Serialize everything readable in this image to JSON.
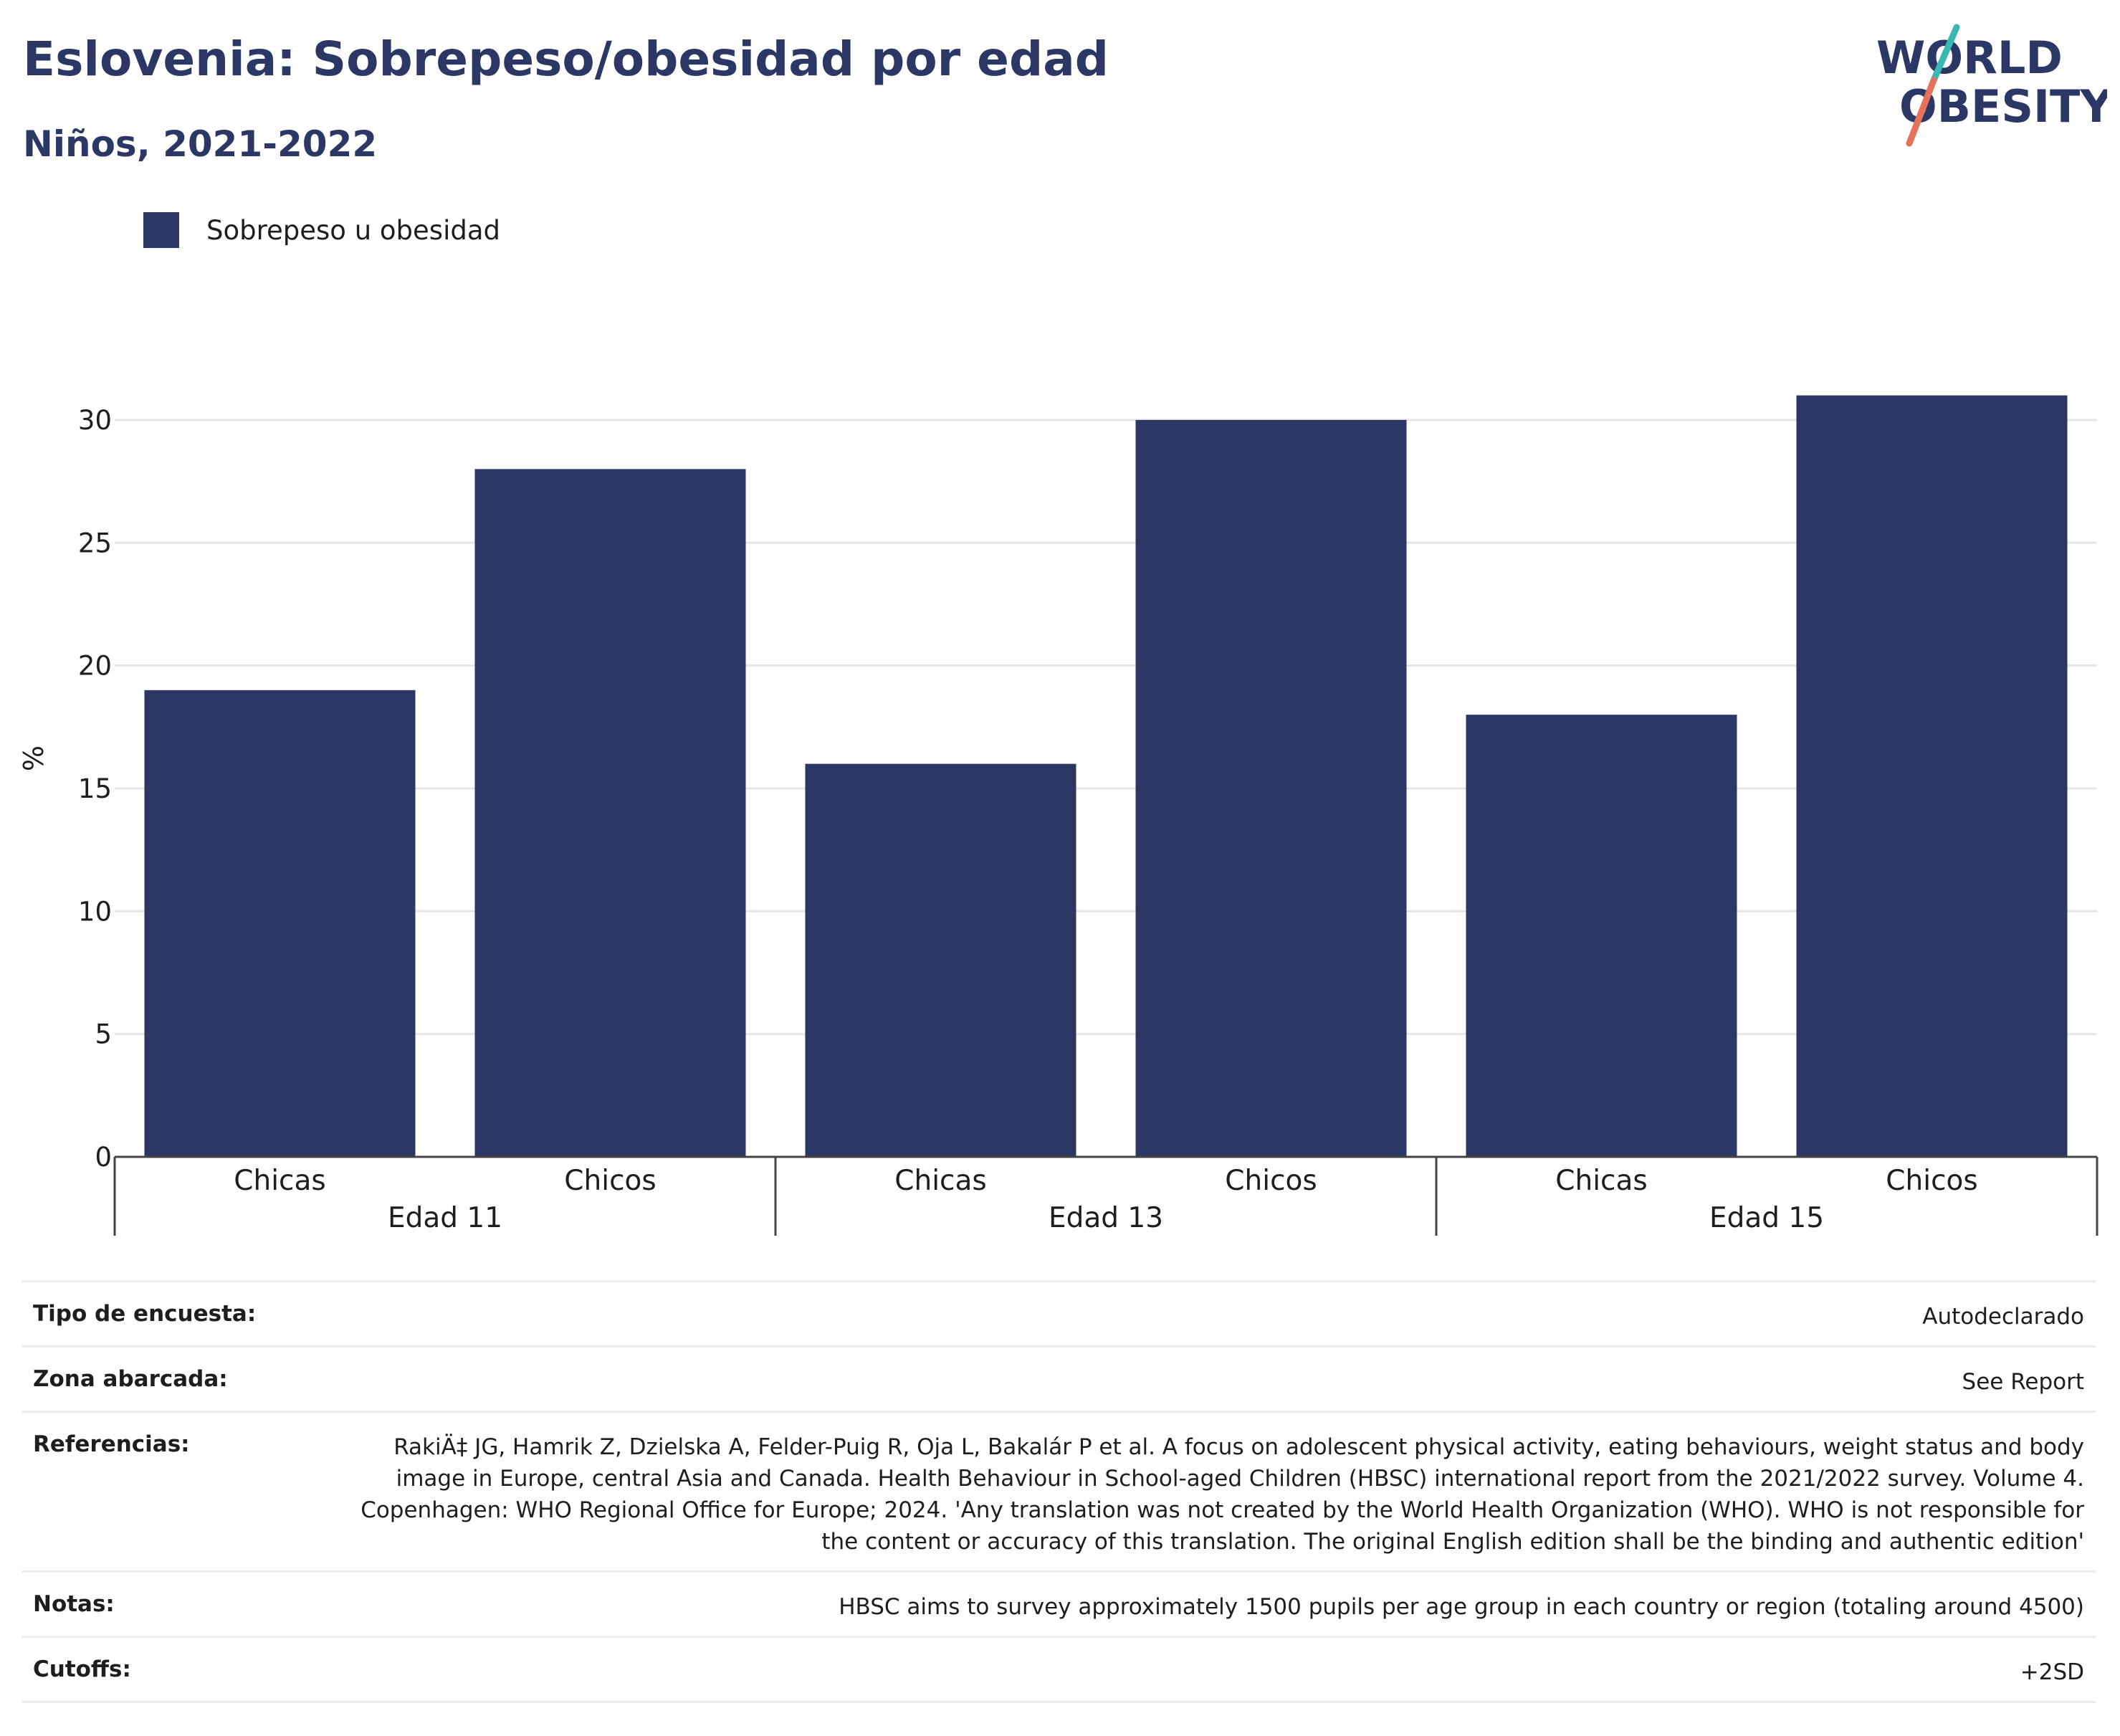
{
  "title": "Eslovenia: Sobrepeso/obesidad por edad",
  "subtitle": "Niños, 2021-2022",
  "logo": {
    "line1": "WORLD",
    "line2": "OBESITY"
  },
  "colors": {
    "bar": "#2b3764",
    "title": "#2b3764",
    "logo_teal": "#3bb8b2",
    "logo_coral": "#e5735c"
  },
  "chart_data": {
    "type": "bar",
    "ylabel": "%",
    "ylim": [
      0,
      30
    ],
    "yticks": [
      0,
      5,
      10,
      15,
      20,
      25,
      30
    ],
    "grid": true,
    "legend_position": "top-left",
    "series": [
      {
        "name": "Sobrepeso u obesidad",
        "values": [
          19,
          28,
          16,
          30,
          18,
          31
        ]
      }
    ],
    "categories": [
      "Chicas",
      "Chicos",
      "Chicas",
      "Chicos",
      "Chicas",
      "Chicos"
    ],
    "groups": [
      "Edad 11",
      "Edad 13",
      "Edad 15"
    ]
  },
  "info": [
    {
      "label": "Tipo de encuesta:",
      "value": "Autodeclarado"
    },
    {
      "label": "Zona abarcada:",
      "value": "See Report"
    },
    {
      "label": "Referencias:",
      "value": "RakiÄ‡ JG, Hamrik Z, Dzielska A, Felder-Puig R, Oja L, Bakalár P et al. A focus on adolescent physical activity, eating behaviours, weight status and body image in Europe, central Asia and Canada. Health Behaviour in School-aged Children (HBSC) international report from the 2021/2022 survey. Volume 4. Copenhagen: WHO Regional Office for Europe; 2024. 'Any translation was not created by the World Health Organization (WHO). WHO is not responsible for the content or accuracy of this translation. The original English edition shall be the binding and authentic edition'"
    },
    {
      "label": "Notas:",
      "value": "HBSC aims to survey approximately 1500 pupils per age group in each country or region (totaling around 4500)"
    },
    {
      "label": "Cutoffs:",
      "value": "+2SD"
    }
  ]
}
